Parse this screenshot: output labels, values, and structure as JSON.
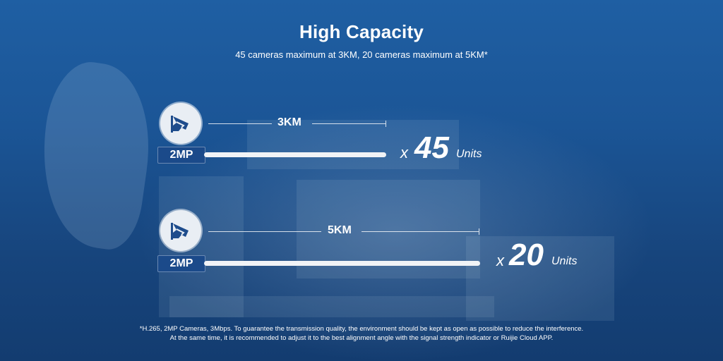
{
  "header": {
    "title": "High Capacity",
    "subtitle": "45 cameras maximum at 3KM, 20 cameras maximum at 5KM*"
  },
  "rows": [
    {
      "icon": "camera-icon",
      "badge": "2MP",
      "distance": "3KM",
      "x_sign": "x",
      "count": "45",
      "units": "Units",
      "relative_length": 0.6
    },
    {
      "icon": "camera-icon",
      "badge": "2MP",
      "distance": "5KM",
      "x_sign": "x",
      "count": "20",
      "units": "Units",
      "relative_length": 1.0
    }
  ],
  "footnote": {
    "line1": "*H.265, 2MP Cameras, 3Mbps. To guarantee the transmission quality, the environment should be kept as open as possible to reduce the interference.",
    "line2": "At the same time, it is recommended to adjust it to the best alignment angle with the signal strength indicator or Ruijie Cloud APP."
  },
  "colors": {
    "background": "#1b5596",
    "badge": "#1b4a8a",
    "icon": "#1e4c8c",
    "bar": "#f1f3f6"
  }
}
